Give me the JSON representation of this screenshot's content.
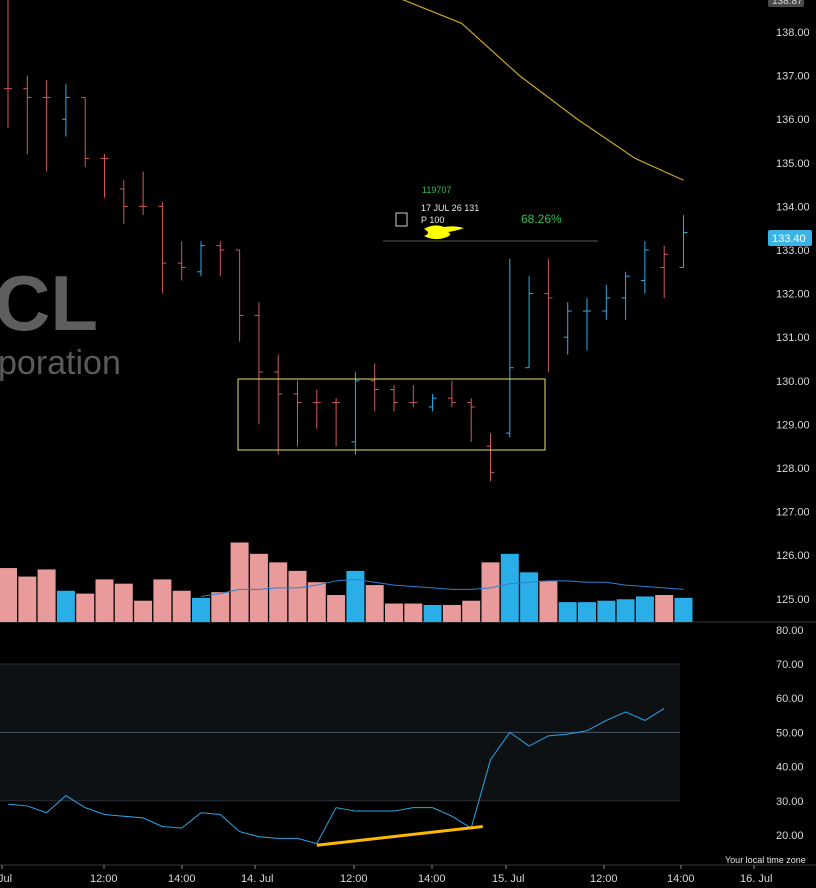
{
  "watermark": {
    "ticker": "CL",
    "name": "poration"
  },
  "price_axis": {
    "ticks": [
      "138.00",
      "137.00",
      "136.00",
      "135.00",
      "134.00",
      "133.00",
      "132.00",
      "131.00",
      "130.00",
      "129.00",
      "128.00",
      "127.00",
      "126.00",
      "125.00"
    ],
    "top_tag": "138.87",
    "last_price_tag": "133.40",
    "last_price_color": "#3bb3e4"
  },
  "rsi_axis": {
    "ticks": [
      "80.00",
      "70.00",
      "60.00",
      "50.00",
      "40.00",
      "30.00",
      "20.00"
    ]
  },
  "time_axis": {
    "ticks": [
      " Jul",
      "12:00",
      "14:00",
      "14. Jul",
      "12:00",
      "14:00",
      "15. Jul",
      "12:00",
      "14:00",
      "16. Jul"
    ],
    "note": "Your local time zone"
  },
  "overlay": {
    "text_top": "17 JUL 26 131",
    "text_bottom": "P 100",
    "percent": "68.26%",
    "cut_text": "119707",
    "percent_color": "#2fbf4f",
    "highlight_color": "#ffff00"
  },
  "colors": {
    "up": "#29aee8",
    "down": "#e99b9b",
    "down_wick": "#d05a5a",
    "ma": "#c9a227",
    "volume_ma": "#2f7fd0",
    "rsi": "#2aa7e8",
    "trendline": "#ffb800",
    "box": "#e8e070"
  },
  "chart_data": {
    "type": "ohlc",
    "price_ylim": [
      124.6,
      139.0
    ],
    "candles": [
      {
        "o": 136.7,
        "h": 138.8,
        "l": 135.8,
        "c": 136.7,
        "d": "down"
      },
      {
        "o": 136.7,
        "h": 137.0,
        "l": 135.2,
        "c": 136.5,
        "d": "down"
      },
      {
        "o": 136.5,
        "h": 136.9,
        "l": 134.8,
        "c": 136.5,
        "d": "down"
      },
      {
        "o": 136.0,
        "h": 136.8,
        "l": 135.6,
        "c": 136.5,
        "d": "up"
      },
      {
        "o": 136.5,
        "h": 136.5,
        "l": 134.9,
        "c": 135.1,
        "d": "down"
      },
      {
        "o": 135.1,
        "h": 135.2,
        "l": 134.2,
        "c": 135.1,
        "d": "down"
      },
      {
        "o": 134.4,
        "h": 134.6,
        "l": 133.6,
        "c": 134.0,
        "d": "down"
      },
      {
        "o": 134.0,
        "h": 134.8,
        "l": 133.8,
        "c": 134.0,
        "d": "down"
      },
      {
        "o": 134.0,
        "h": 134.1,
        "l": 132.0,
        "c": 132.7,
        "d": "down"
      },
      {
        "o": 132.7,
        "h": 133.2,
        "l": 132.3,
        "c": 132.6,
        "d": "down"
      },
      {
        "o": 132.5,
        "h": 133.2,
        "l": 132.4,
        "c": 133.1,
        "d": "up"
      },
      {
        "o": 133.1,
        "h": 133.2,
        "l": 132.4,
        "c": 133.0,
        "d": "down"
      },
      {
        "o": 133.0,
        "h": 133.0,
        "l": 130.9,
        "c": 131.5,
        "d": "down"
      },
      {
        "o": 131.5,
        "h": 131.8,
        "l": 129.0,
        "c": 130.2,
        "d": "down"
      },
      {
        "o": 130.2,
        "h": 130.6,
        "l": 128.3,
        "c": 129.7,
        "d": "down"
      },
      {
        "o": 129.7,
        "h": 130.0,
        "l": 128.5,
        "c": 129.5,
        "d": "down"
      },
      {
        "o": 129.5,
        "h": 129.8,
        "l": 128.9,
        "c": 129.5,
        "d": "down"
      },
      {
        "o": 129.5,
        "h": 129.6,
        "l": 128.5,
        "c": 129.5,
        "d": "down"
      },
      {
        "o": 128.6,
        "h": 130.2,
        "l": 128.3,
        "c": 130.0,
        "d": "up"
      },
      {
        "o": 130.0,
        "h": 130.4,
        "l": 129.3,
        "c": 129.8,
        "d": "down"
      },
      {
        "o": 129.8,
        "h": 129.9,
        "l": 129.3,
        "c": 129.5,
        "d": "down"
      },
      {
        "o": 129.5,
        "h": 129.9,
        "l": 129.4,
        "c": 129.5,
        "d": "down"
      },
      {
        "o": 129.4,
        "h": 129.7,
        "l": 129.3,
        "c": 129.6,
        "d": "up"
      },
      {
        "o": 129.6,
        "h": 130.0,
        "l": 129.4,
        "c": 129.5,
        "d": "down"
      },
      {
        "o": 129.5,
        "h": 129.6,
        "l": 128.6,
        "c": 129.4,
        "d": "down"
      },
      {
        "o": 128.5,
        "h": 128.8,
        "l": 127.7,
        "c": 127.9,
        "d": "down"
      },
      {
        "o": 128.8,
        "h": 132.8,
        "l": 128.7,
        "c": 130.3,
        "d": "up"
      },
      {
        "o": 130.3,
        "h": 132.4,
        "l": 130.3,
        "c": 132.0,
        "d": "up"
      },
      {
        "o": 132.0,
        "h": 132.8,
        "l": 130.2,
        "c": 131.9,
        "d": "down"
      },
      {
        "o": 131.0,
        "h": 131.8,
        "l": 130.6,
        "c": 131.6,
        "d": "up"
      },
      {
        "o": 131.6,
        "h": 131.9,
        "l": 130.7,
        "c": 131.6,
        "d": "up"
      },
      {
        "o": 131.6,
        "h": 132.2,
        "l": 131.4,
        "c": 131.9,
        "d": "up"
      },
      {
        "o": 131.9,
        "h": 132.5,
        "l": 131.4,
        "c": 132.4,
        "d": "up"
      },
      {
        "o": 132.3,
        "h": 133.2,
        "l": 132.0,
        "c": 133.0,
        "d": "up"
      },
      {
        "o": 132.6,
        "h": 133.1,
        "l": 131.9,
        "c": 132.9,
        "d": "down"
      },
      {
        "o": 132.6,
        "h": 133.8,
        "l": 132.6,
        "c": 133.4,
        "d": "up"
      }
    ],
    "ma": [
      {
        "i": 19,
        "v": 139.0
      },
      {
        "i": 23.5,
        "v": 138.2
      },
      {
        "i": 26.5,
        "v": 137.0
      },
      {
        "i": 29.5,
        "v": 136.0
      },
      {
        "i": 32.5,
        "v": 135.1
      },
      {
        "i": 35,
        "v": 134.6
      }
    ],
    "volume": {
      "ylim": [
        0,
        100
      ],
      "bars": [
        38,
        32,
        37,
        22,
        20,
        30,
        27,
        15,
        30,
        22,
        17,
        21,
        56,
        48,
        42,
        36,
        28,
        19,
        36,
        26,
        13,
        13,
        12,
        12,
        15,
        42,
        48,
        35,
        29,
        14,
        14,
        15,
        16,
        18,
        19,
        17
      ],
      "ma": [
        null,
        null,
        null,
        null,
        null,
        null,
        null,
        null,
        null,
        null,
        18,
        20,
        23,
        23,
        24,
        24,
        26,
        29,
        30,
        28,
        26,
        25,
        24,
        23,
        23,
        24,
        27,
        28,
        29,
        29,
        28,
        28,
        26,
        25,
        24,
        23
      ]
    },
    "rsi": {
      "ylim": [
        15,
        82
      ],
      "bands": [
        70,
        50,
        30
      ],
      "values": [
        29,
        28.5,
        26.5,
        31.5,
        28,
        26,
        25.5,
        25,
        22.5,
        22,
        26.5,
        26,
        21,
        19.5,
        19,
        19,
        17.5,
        28,
        27,
        27,
        27,
        28,
        28,
        25.5,
        22,
        42,
        50,
        46,
        49,
        49.5,
        50.5,
        53.5,
        56,
        53.5,
        57
      ],
      "trendline": [
        {
          "i": 16,
          "v": 17
        },
        {
          "i": 24.6,
          "v": 22.5
        }
      ]
    }
  }
}
